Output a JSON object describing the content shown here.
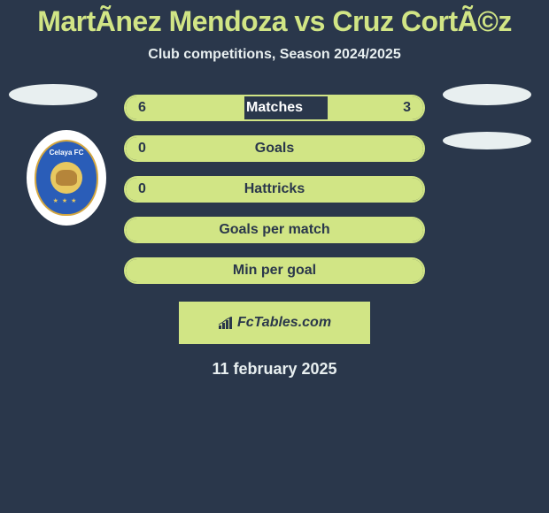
{
  "title": "MartÃ­nez Mendoza vs Cruz CortÃ©z",
  "subtitle": "Club competitions, Season 2024/2025",
  "date": "11 february 2025",
  "credit": "FcTables.com",
  "team_badge": {
    "name": "Celaya FC",
    "primary_color": "#2a5db8",
    "accent_color": "#e8c860"
  },
  "colors": {
    "background": "#2a374b",
    "accent": "#d1e585",
    "text_light": "#e8eff0",
    "text_dark": "#2a374b"
  },
  "stats": [
    {
      "label": "Matches",
      "left_value": "6",
      "right_value": "3",
      "left_fill_pct": 40,
      "right_fill_pct": 32,
      "label_dark": false
    },
    {
      "label": "Goals",
      "left_value": "0",
      "right_value": "",
      "left_fill_pct": 100,
      "right_fill_pct": 0,
      "label_dark": true
    },
    {
      "label": "Hattricks",
      "left_value": "0",
      "right_value": "",
      "left_fill_pct": 100,
      "right_fill_pct": 0,
      "label_dark": true
    },
    {
      "label": "Goals per match",
      "left_value": "",
      "right_value": "",
      "left_fill_pct": 100,
      "right_fill_pct": 0,
      "label_dark": true
    },
    {
      "label": "Min per goal",
      "left_value": "",
      "right_value": "",
      "left_fill_pct": 100,
      "right_fill_pct": 0,
      "label_dark": true
    }
  ]
}
